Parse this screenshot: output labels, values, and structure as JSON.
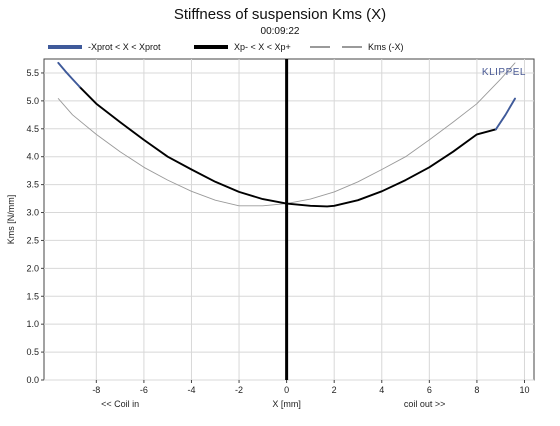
{
  "chart_data": {
    "type": "line",
    "title": "Stiffness of suspension Kms (X)",
    "subtitle": "00:09:22",
    "xlabel": "X [mm]",
    "xlabel_left": "<< Coil in",
    "xlabel_right": "coil out >>",
    "ylabel": "Kms [N/mm]",
    "brand": "KLIPPEL",
    "xlim": [
      -10.2,
      10.4
    ],
    "ylim": [
      0.0,
      5.75
    ],
    "xticks": [
      -8,
      -6,
      -4,
      -2,
      0,
      2,
      4,
      6,
      8,
      10
    ],
    "yticks": [
      0.0,
      0.5,
      1.0,
      1.5,
      2.0,
      2.5,
      3.0,
      3.5,
      4.0,
      4.5,
      5.0,
      5.5
    ],
    "grid": true,
    "legend_position": "top",
    "series": [
      {
        "name": "-Xprot < X < Xprot",
        "color": "#3f5a9a",
        "style": "thick",
        "x": [
          -9.6,
          -9.3,
          -9.0,
          -8.7,
          8.8,
          9.2,
          9.6
        ],
        "y": [
          5.68,
          5.53,
          5.39,
          5.25,
          4.49,
          4.75,
          5.04
        ]
      },
      {
        "name": "Xp- < X < Xp+",
        "color": "#000000",
        "style": "thick",
        "x": [
          -8.7,
          -8.0,
          -7.0,
          -6.0,
          -5.0,
          -4.0,
          -3.0,
          -2.0,
          -1.0,
          0.0,
          1.0,
          1.7,
          2.0,
          3.0,
          4.0,
          5.0,
          6.0,
          7.0,
          8.0,
          8.8
        ],
        "y": [
          5.25,
          4.95,
          4.62,
          4.3,
          4.0,
          3.77,
          3.55,
          3.37,
          3.24,
          3.16,
          3.12,
          3.11,
          3.12,
          3.22,
          3.38,
          3.58,
          3.81,
          4.09,
          4.4,
          4.49
        ]
      },
      {
        "name": "Kms (-X)",
        "color": "#9a9a9a",
        "style": "thin",
        "x": [
          -9.6,
          -9.0,
          -8.0,
          -7.0,
          -6.0,
          -5.0,
          -4.0,
          -3.0,
          -2.0,
          -1.0,
          0.0,
          1.0,
          2.0,
          3.0,
          4.0,
          5.0,
          6.0,
          7.0,
          8.0,
          9.0,
          9.6
        ],
        "y": [
          5.04,
          4.75,
          4.4,
          4.09,
          3.81,
          3.58,
          3.38,
          3.22,
          3.12,
          3.12,
          3.16,
          3.24,
          3.37,
          3.55,
          3.77,
          4.0,
          4.3,
          4.62,
          4.95,
          5.39,
          5.68
        ]
      }
    ]
  }
}
